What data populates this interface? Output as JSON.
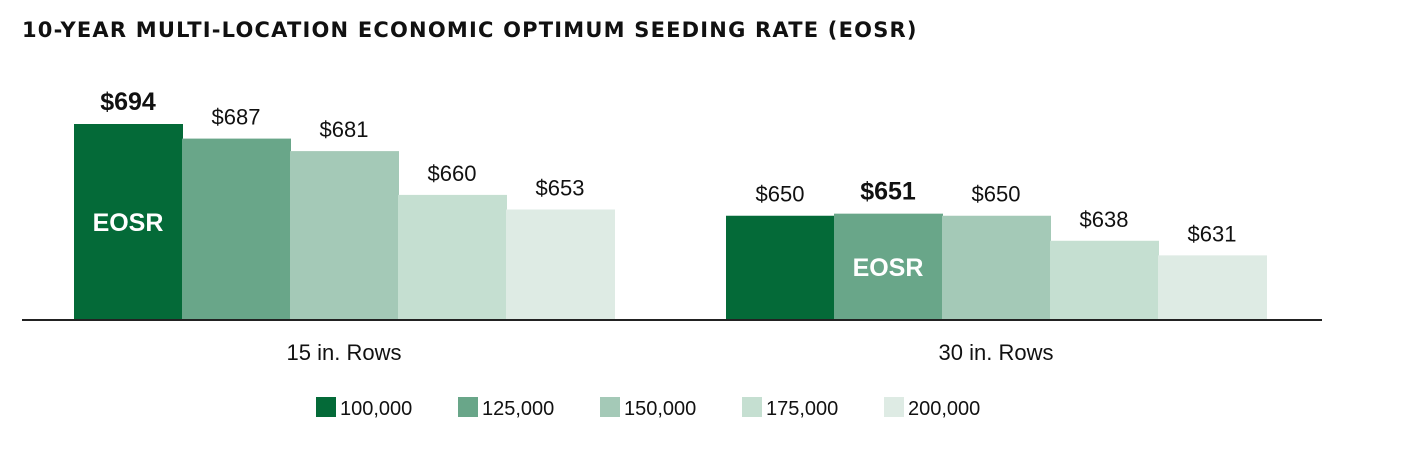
{
  "chart_data": {
    "type": "bar",
    "title": "10-YEAR MULTI-LOCATION ECONOMIC OPTIMUM SEEDING RATE (EOSR)",
    "xlabel": "",
    "ylabel": "",
    "categories": [
      "15 in. Rows",
      "30 in. Rows"
    ],
    "series": [
      {
        "name": "100,000",
        "values": [
          694,
          650
        ],
        "labels": [
          "$694",
          "$650"
        ]
      },
      {
        "name": "125,000",
        "values": [
          687,
          651
        ],
        "labels": [
          "$687",
          "$651"
        ]
      },
      {
        "name": "150,000",
        "values": [
          681,
          650
        ],
        "labels": [
          "$681",
          "$650"
        ]
      },
      {
        "name": "175,000",
        "values": [
          660,
          638
        ],
        "labels": [
          "$660",
          "$638"
        ]
      },
      {
        "name": "200,000",
        "values": [
          653,
          631
        ],
        "labels": [
          "$653",
          "$631"
        ]
      }
    ],
    "ylim": [
      600,
      700
    ],
    "eosr": [
      {
        "category": 0,
        "series": 0,
        "label": "EOSR"
      },
      {
        "category": 1,
        "series": 1,
        "label": "EOSR"
      }
    ],
    "colors": [
      "#046a38",
      "#69a689",
      "#a4c9b7",
      "#c5dfd1",
      "#deebe4"
    ],
    "grid": false,
    "legend": "bottom"
  }
}
